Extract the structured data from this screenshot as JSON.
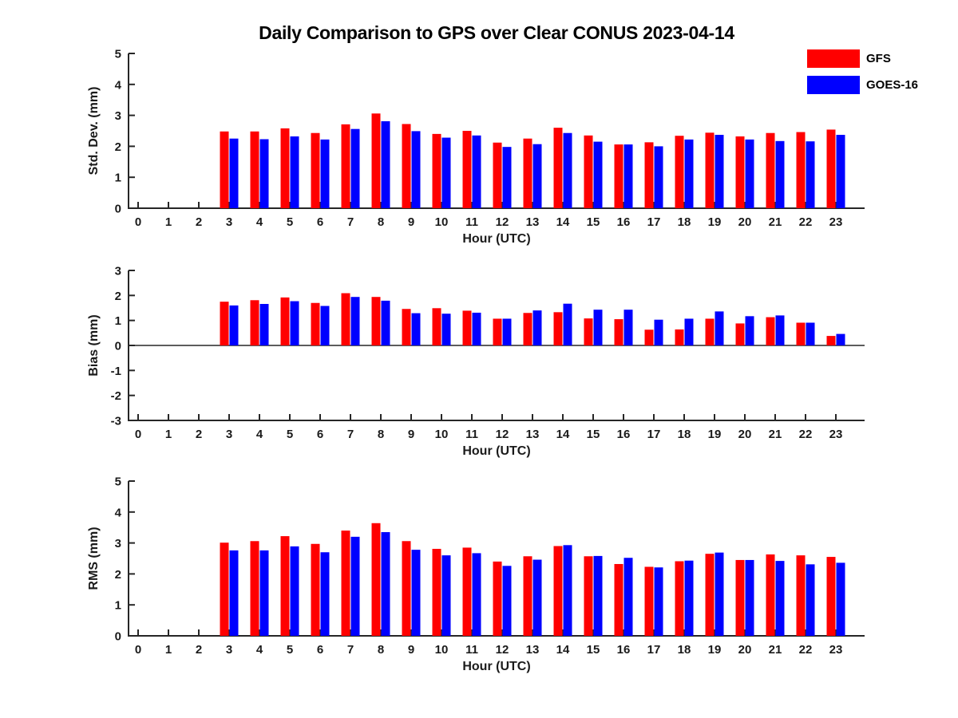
{
  "title": "Daily Comparison to GPS over Clear CONUS 2023-04-14",
  "colors": {
    "gfs": "#ff0000",
    "goes16": "#0000ff",
    "axis": "#262626",
    "text": "#1a1a1a",
    "background": "#ffffff"
  },
  "legend": {
    "items": [
      {
        "label": "GFS",
        "color": "#ff0000"
      },
      {
        "label": "GOES-16",
        "color": "#0000ff"
      }
    ],
    "position": "top-right-outside"
  },
  "xlabel": "Hour (UTC)",
  "hours": [
    0,
    1,
    2,
    3,
    4,
    5,
    6,
    7,
    8,
    9,
    10,
    11,
    12,
    13,
    14,
    15,
    16,
    17,
    18,
    19,
    20,
    21,
    22,
    23
  ],
  "chart_data": [
    {
      "type": "bar",
      "ylabel": "Std. Dev. (mm)",
      "xlabel": "Hour (UTC)",
      "ylim": [
        0,
        5
      ],
      "yticks": [
        0,
        1,
        2,
        3,
        4,
        5
      ],
      "grid": false,
      "categories": [
        0,
        1,
        2,
        3,
        4,
        5,
        6,
        7,
        8,
        9,
        10,
        11,
        12,
        13,
        14,
        15,
        16,
        17,
        18,
        19,
        20,
        21,
        22,
        23
      ],
      "series": [
        {
          "name": "GFS",
          "color": "#ff0000",
          "values": [
            null,
            null,
            null,
            2.48,
            2.48,
            2.58,
            2.43,
            2.71,
            3.06,
            2.72,
            2.4,
            2.5,
            2.12,
            2.25,
            2.6,
            2.35,
            2.06,
            2.13,
            2.34,
            2.44,
            2.32,
            2.43,
            2.46,
            2.54
          ]
        },
        {
          "name": "GOES-16",
          "color": "#0000ff",
          "values": [
            null,
            null,
            null,
            2.25,
            2.23,
            2.32,
            2.22,
            2.56,
            2.81,
            2.49,
            2.28,
            2.35,
            1.98,
            2.07,
            2.43,
            2.15,
            2.06,
            2.0,
            2.22,
            2.37,
            2.22,
            2.17,
            2.16,
            2.37
          ]
        }
      ]
    },
    {
      "type": "bar",
      "ylabel": "Bias (mm)",
      "xlabel": "Hour (UTC)",
      "ylim": [
        -3,
        3
      ],
      "yticks": [
        -3,
        -2,
        -1,
        0,
        1,
        2,
        3
      ],
      "grid": false,
      "zero_line": true,
      "categories": [
        0,
        1,
        2,
        3,
        4,
        5,
        6,
        7,
        8,
        9,
        10,
        11,
        12,
        13,
        14,
        15,
        16,
        17,
        18,
        19,
        20,
        21,
        22,
        23
      ],
      "series": [
        {
          "name": "GFS",
          "color": "#ff0000",
          "values": [
            null,
            null,
            null,
            1.75,
            1.81,
            1.92,
            1.7,
            2.09,
            1.94,
            1.46,
            1.49,
            1.39,
            1.07,
            1.3,
            1.33,
            1.08,
            1.05,
            0.63,
            0.64,
            1.07,
            0.88,
            1.13,
            0.91,
            0.38
          ]
        },
        {
          "name": "GOES-16",
          "color": "#0000ff",
          "values": [
            null,
            null,
            null,
            1.6,
            1.66,
            1.77,
            1.58,
            1.94,
            1.79,
            1.29,
            1.27,
            1.31,
            1.07,
            1.4,
            1.67,
            1.43,
            1.43,
            1.03,
            1.07,
            1.36,
            1.17,
            1.2,
            0.91,
            0.46
          ]
        }
      ]
    },
    {
      "type": "bar",
      "ylabel": "RMS (mm)",
      "xlabel": "Hour (UTC)",
      "ylim": [
        0,
        5
      ],
      "yticks": [
        0,
        1,
        2,
        3,
        4,
        5
      ],
      "grid": false,
      "categories": [
        0,
        1,
        2,
        3,
        4,
        5,
        6,
        7,
        8,
        9,
        10,
        11,
        12,
        13,
        14,
        15,
        16,
        17,
        18,
        19,
        20,
        21,
        22,
        23
      ],
      "series": [
        {
          "name": "GFS",
          "color": "#ff0000",
          "values": [
            null,
            null,
            null,
            3.01,
            3.06,
            3.22,
            2.97,
            3.4,
            3.64,
            3.06,
            2.81,
            2.85,
            2.4,
            2.57,
            2.9,
            2.57,
            2.32,
            2.23,
            2.41,
            2.65,
            2.45,
            2.63,
            2.6,
            2.55
          ]
        },
        {
          "name": "GOES-16",
          "color": "#0000ff",
          "values": [
            null,
            null,
            null,
            2.76,
            2.76,
            2.89,
            2.7,
            3.2,
            3.35,
            2.78,
            2.6,
            2.67,
            2.26,
            2.46,
            2.93,
            2.58,
            2.52,
            2.21,
            2.43,
            2.69,
            2.45,
            2.42,
            2.31,
            2.36
          ]
        }
      ]
    }
  ]
}
